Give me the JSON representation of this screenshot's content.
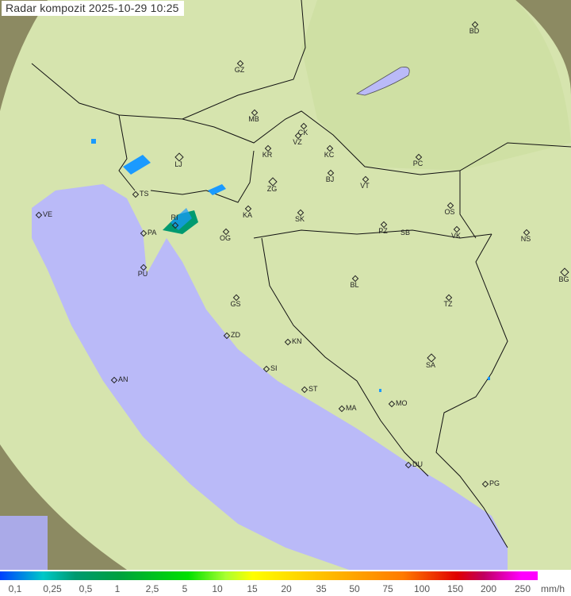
{
  "title": "Radar kompozit  2025-10-29   10:25",
  "colors": {
    "sea": "#babaf8",
    "land_covered": "#d8e6b0",
    "land_outside": "#8a8a60",
    "rain_light": "#1a9aff",
    "rain_medium": "#009a70"
  },
  "cities": [
    "BD",
    "GZ",
    "MB",
    "CK",
    "VZ",
    "KR",
    "KC",
    "PC",
    "LJ",
    "ZG",
    "BJ",
    "VT",
    "TS",
    "VE",
    "KA",
    "SK",
    "OS",
    "NS",
    "PA",
    "RI",
    "OG",
    "PZ",
    "SB",
    "VK",
    "PU",
    "BL",
    "BG",
    "GS",
    "TZ",
    "ZD",
    "KN",
    "SA",
    "AN",
    "SI",
    "ST",
    "MA",
    "MO",
    "DU",
    "PG"
  ],
  "legend": {
    "unit": "mm/h",
    "ticks": [
      "0,1",
      "0,25",
      "0,5",
      "1",
      "2,5",
      "5",
      "10",
      "15",
      "20",
      "35",
      "50",
      "75",
      "100",
      "150",
      "200",
      "250"
    ]
  }
}
